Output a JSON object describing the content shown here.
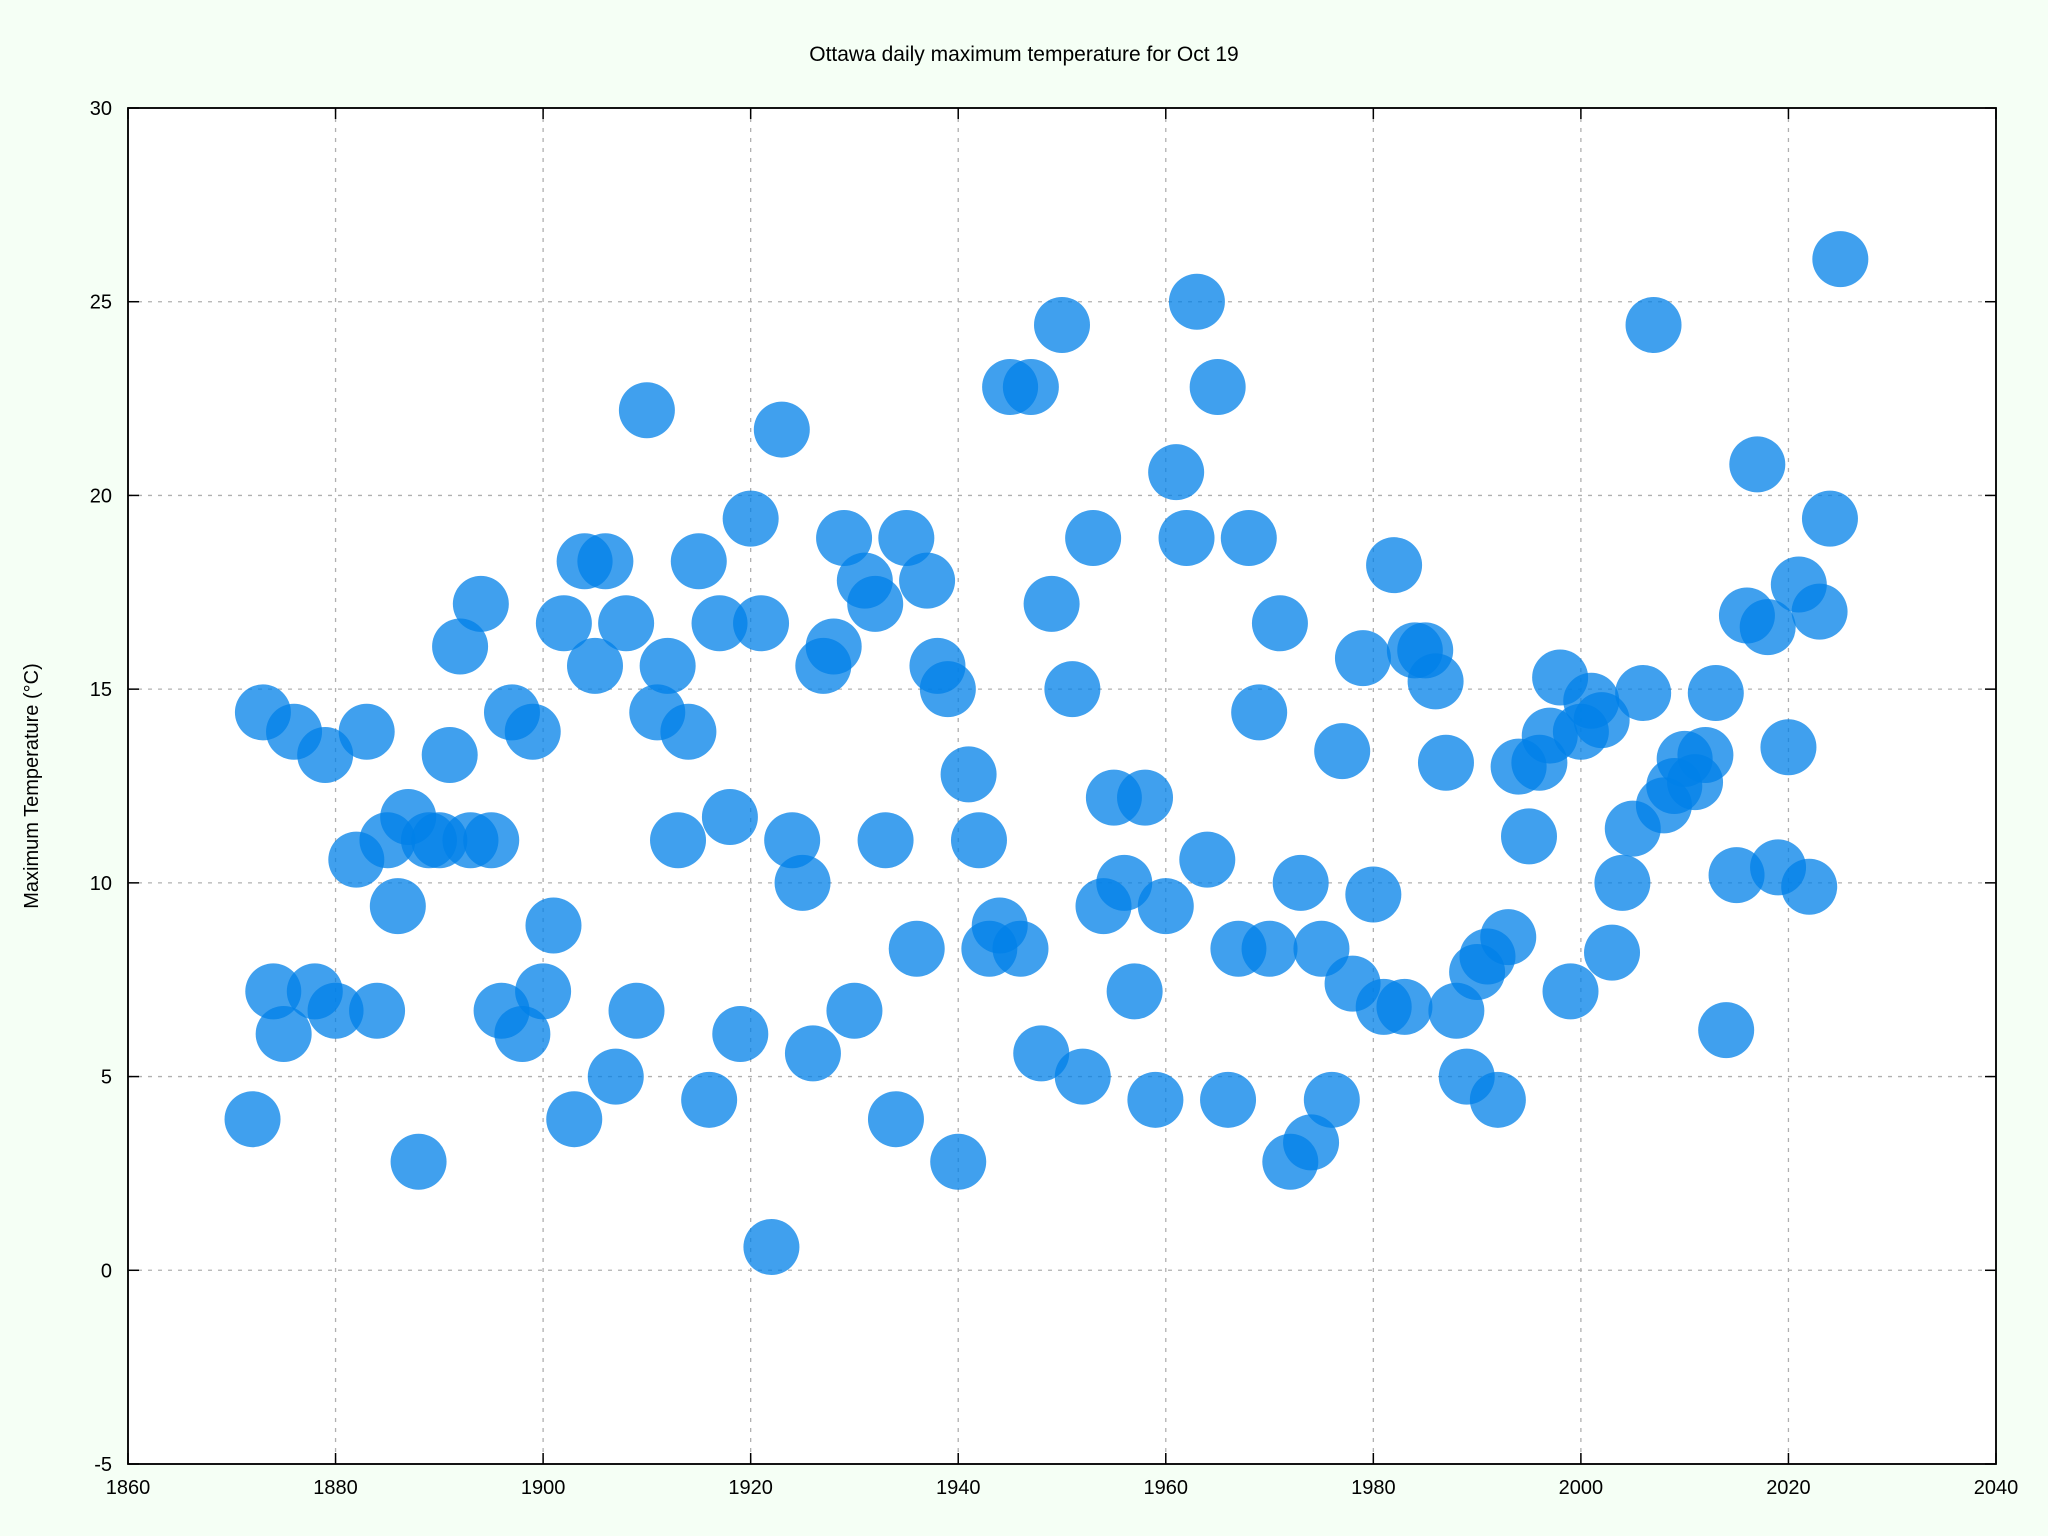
{
  "chart_data": {
    "type": "scatter",
    "title": "Ottawa daily maximum temperature for Oct 19",
    "xlabel": "",
    "ylabel": "Maximum Temperature (°C)",
    "xlim": [
      1860,
      2040
    ],
    "ylim": [
      -5,
      30
    ],
    "xticks": [
      1860,
      1880,
      1900,
      1920,
      1940,
      1960,
      1980,
      2000,
      2020,
      2040
    ],
    "yticks": [
      -5,
      0,
      5,
      10,
      15,
      20,
      25,
      30
    ],
    "grid": true,
    "marker_color": "#0080e8",
    "background_color": "#f5fff5",
    "plot_background_color": "#ffffff",
    "points": [
      [
        1872,
        3.9
      ],
      [
        1873,
        14.4
      ],
      [
        1874,
        7.2
      ],
      [
        1875,
        6.1
      ],
      [
        1876,
        13.9
      ],
      [
        1878,
        7.2
      ],
      [
        1879,
        13.3
      ],
      [
        1880,
        6.7
      ],
      [
        1882,
        10.6
      ],
      [
        1883,
        13.9
      ],
      [
        1884,
        6.7
      ],
      [
        1885,
        11.1
      ],
      [
        1886,
        9.4
      ],
      [
        1887,
        11.7
      ],
      [
        1888,
        2.8
      ],
      [
        1889,
        11.1
      ],
      [
        1890,
        11.1
      ],
      [
        1891,
        13.3
      ],
      [
        1892,
        16.1
      ],
      [
        1893,
        11.1
      ],
      [
        1894,
        17.2
      ],
      [
        1895,
        11.1
      ],
      [
        1896,
        6.7
      ],
      [
        1897,
        14.4
      ],
      [
        1898,
        6.1
      ],
      [
        1899,
        13.9
      ],
      [
        1900,
        7.2
      ],
      [
        1901,
        8.9
      ],
      [
        1902,
        16.7
      ],
      [
        1903,
        3.9
      ],
      [
        1904,
        18.3
      ],
      [
        1905,
        15.6
      ],
      [
        1906,
        18.3
      ],
      [
        1907,
        5.0
      ],
      [
        1908,
        16.7
      ],
      [
        1909,
        6.7
      ],
      [
        1910,
        22.2
      ],
      [
        1911,
        14.4
      ],
      [
        1912,
        15.6
      ],
      [
        1913,
        11.1
      ],
      [
        1914,
        13.9
      ],
      [
        1915,
        18.3
      ],
      [
        1916,
        4.4
      ],
      [
        1917,
        16.7
      ],
      [
        1918,
        11.7
      ],
      [
        1919,
        6.1
      ],
      [
        1920,
        19.4
      ],
      [
        1921,
        16.7
      ],
      [
        1922,
        0.6
      ],
      [
        1923,
        21.7
      ],
      [
        1924,
        11.1
      ],
      [
        1925,
        10.0
      ],
      [
        1926,
        5.6
      ],
      [
        1927,
        15.6
      ],
      [
        1928,
        16.1
      ],
      [
        1929,
        18.9
      ],
      [
        1930,
        6.7
      ],
      [
        1931,
        17.8
      ],
      [
        1932,
        17.2
      ],
      [
        1933,
        11.1
      ],
      [
        1934,
        3.9
      ],
      [
        1935,
        18.9
      ],
      [
        1936,
        8.3
      ],
      [
        1937,
        17.8
      ],
      [
        1938,
        15.6
      ],
      [
        1939,
        15.0
      ],
      [
        1940,
        2.8
      ],
      [
        1941,
        12.8
      ],
      [
        1942,
        11.1
      ],
      [
        1943,
        8.3
      ],
      [
        1944,
        8.9
      ],
      [
        1945,
        22.8
      ],
      [
        1946,
        8.3
      ],
      [
        1947,
        22.8
      ],
      [
        1948,
        5.6
      ],
      [
        1949,
        17.2
      ],
      [
        1950,
        24.4
      ],
      [
        1951,
        15.0
      ],
      [
        1952,
        5.0
      ],
      [
        1953,
        18.9
      ],
      [
        1954,
        9.4
      ],
      [
        1955,
        12.2
      ],
      [
        1956,
        10.0
      ],
      [
        1957,
        7.2
      ],
      [
        1958,
        12.2
      ],
      [
        1959,
        4.4
      ],
      [
        1960,
        9.4
      ],
      [
        1961,
        20.6
      ],
      [
        1962,
        18.9
      ],
      [
        1963,
        25.0
      ],
      [
        1964,
        10.6
      ],
      [
        1965,
        22.8
      ],
      [
        1966,
        4.4
      ],
      [
        1967,
        8.3
      ],
      [
        1968,
        18.9
      ],
      [
        1969,
        14.4
      ],
      [
        1970,
        8.3
      ],
      [
        1971,
        16.7
      ],
      [
        1972,
        2.8
      ],
      [
        1973,
        10.0
      ],
      [
        1974,
        3.3
      ],
      [
        1975,
        8.3
      ],
      [
        1976,
        4.4
      ],
      [
        1977,
        13.4
      ],
      [
        1978,
        7.4
      ],
      [
        1979,
        15.8
      ],
      [
        1980,
        9.7
      ],
      [
        1981,
        6.8
      ],
      [
        1982,
        18.2
      ],
      [
        1983,
        6.8
      ],
      [
        1984,
        16.0
      ],
      [
        1985,
        16.0
      ],
      [
        1986,
        15.2
      ],
      [
        1987,
        13.1
      ],
      [
        1988,
        6.7
      ],
      [
        1989,
        5.0
      ],
      [
        1990,
        7.7
      ],
      [
        1991,
        8.1
      ],
      [
        1992,
        4.4
      ],
      [
        1993,
        8.6
      ],
      [
        1994,
        13.0
      ],
      [
        1995,
        11.2
      ],
      [
        1996,
        13.1
      ],
      [
        1997,
        13.8
      ],
      [
        1998,
        15.3
      ],
      [
        1999,
        7.2
      ],
      [
        2000,
        13.9
      ],
      [
        2001,
        14.7
      ],
      [
        2002,
        14.2
      ],
      [
        2003,
        8.2
      ],
      [
        2004,
        10.0
      ],
      [
        2005,
        11.4
      ],
      [
        2006,
        14.9
      ],
      [
        2007,
        24.4
      ],
      [
        2008,
        12.0
      ],
      [
        2009,
        12.5
      ],
      [
        2010,
        13.2
      ],
      [
        2011,
        12.6
      ],
      [
        2012,
        13.3
      ],
      [
        2013,
        14.9
      ],
      [
        2014,
        6.2
      ],
      [
        2015,
        10.2
      ],
      [
        2016,
        16.9
      ],
      [
        2017,
        20.8
      ],
      [
        2018,
        16.6
      ],
      [
        2019,
        10.4
      ],
      [
        2020,
        13.5
      ],
      [
        2021,
        17.7
      ],
      [
        2022,
        9.9
      ],
      [
        2023,
        17.0
      ],
      [
        2024,
        19.4
      ],
      [
        2025,
        26.1
      ]
    ]
  }
}
